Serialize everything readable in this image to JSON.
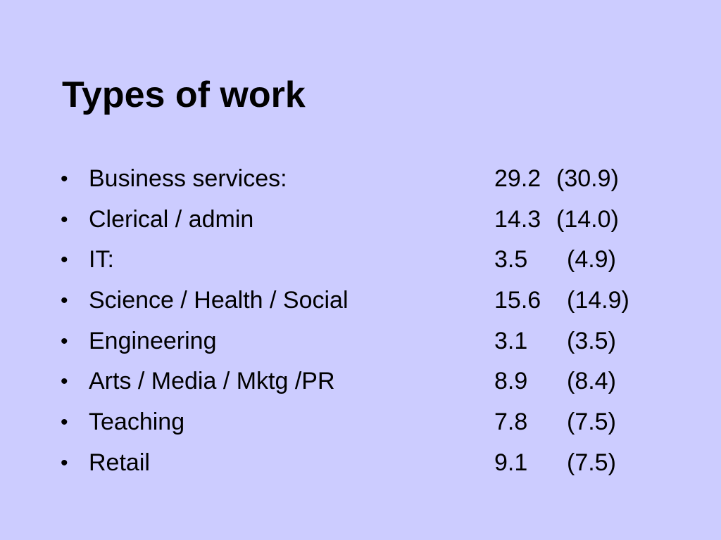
{
  "slide": {
    "title": "Types of work",
    "items": [
      {
        "bullet": "•",
        "label": "Business services:",
        "value": "29.2",
        "previous": "(30.9)"
      },
      {
        "bullet": "•",
        "label": "Clerical / admin",
        "value": "14.3",
        "previous": "(14.0)"
      },
      {
        "bullet": "•",
        "label": "IT:",
        "value": "3.5",
        "previous": "(4.9)"
      },
      {
        "bullet": "•",
        "label": "Science / Health / Social",
        "value": "15.6",
        "previous": "(14.9)"
      },
      {
        "bullet": "•",
        "label": "Engineering",
        "value": "3.1",
        "previous": "(3.5)"
      },
      {
        "bullet": "•",
        "label": "Arts / Media / Mktg /PR",
        "value": "8.9",
        "previous": "(8.4)"
      },
      {
        "bullet": "•",
        "label": "Teaching",
        "value": "7.8",
        "previous": "(7.5)"
      },
      {
        "bullet": "•",
        "label": "Retail",
        "value": "9.1",
        "previous": "(7.5)"
      }
    ]
  },
  "colors": {
    "background": "#ccccff",
    "text": "#000000"
  }
}
